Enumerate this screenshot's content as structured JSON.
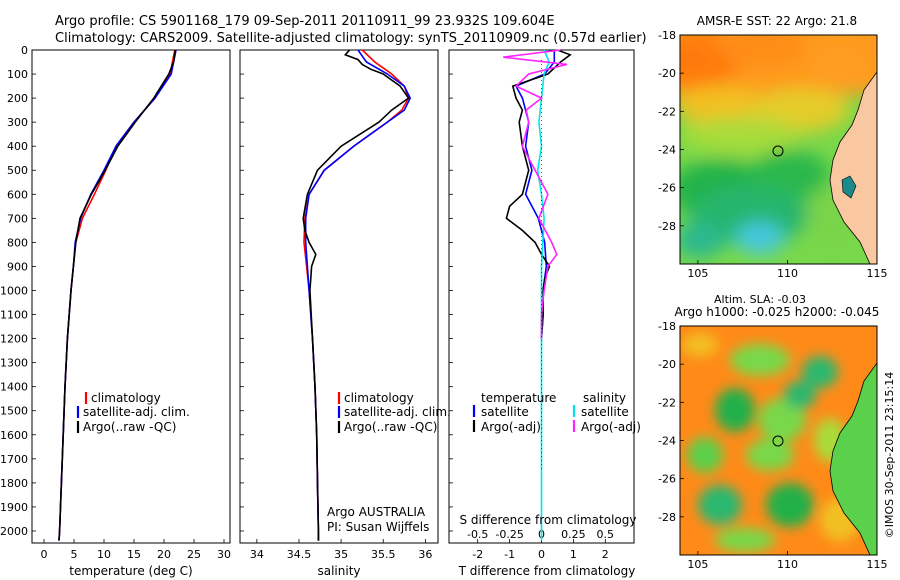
{
  "header": {
    "line1": "Argo profile: CS 5901168_179 09-Sep-2011 20110911_99 23.932S 109.604E",
    "line2": "Climatology: CARS2009. Satellite-adjusted climatology: synTS_20110909.nc (0.57d earlier)"
  },
  "colors": {
    "climatology": "#ff0000",
    "satellite": "#0000ff",
    "argo": "#000000",
    "sat_salinity": "#00e5e5",
    "argo_salinity": "#ff22ff"
  },
  "depth_axis": {
    "ticks": [
      "0",
      "100",
      "200",
      "300",
      "400",
      "500",
      "600",
      "700",
      "800",
      "900",
      "1000",
      "1100",
      "1200",
      "1300",
      "1400",
      "1500",
      "1600",
      "1700",
      "1800",
      "1900",
      "2000"
    ]
  },
  "temp_panel": {
    "xlabel": "temperature (deg C)",
    "ticks": [
      "0",
      "5",
      "10",
      "15",
      "20",
      "25",
      "30"
    ],
    "legend": [
      "climatology",
      "satellite-adj. clim.",
      "Argo(..raw -QC)"
    ]
  },
  "sal_panel": {
    "xlabel": "salinity",
    "ticks": [
      "34",
      "34.5",
      "35",
      "35.5",
      "36"
    ],
    "legend": [
      "climatology",
      "satellite-adj. clim.",
      "Argo(..raw -QC)"
    ],
    "note1": "Argo AUSTRALIA",
    "note2": "PI: Susan Wijffels"
  },
  "diff_panel": {
    "top_label": "S difference from climatology",
    "s_ticks": [
      "-0.5",
      "-0.25",
      "0",
      "0.25",
      "0.5"
    ],
    "t_ticks": [
      "-2",
      "-1",
      "0",
      "1",
      "2"
    ],
    "xlabel": "T difference from climatology",
    "legend_t_title": "temperature",
    "legend_t_items": [
      "satellite",
      "Argo(-adj)"
    ],
    "legend_s_title": "salinity",
    "legend_s_items": [
      "satellite",
      "Argo(-adj)"
    ]
  },
  "map_sst": {
    "title": "AMSR-E SST: 22  Argo: 21.8",
    "lat_ticks": [
      "-18",
      "-20",
      "-22",
      "-24",
      "-26",
      "-28"
    ],
    "lon_ticks": [
      "105",
      "110",
      "115"
    ]
  },
  "map_sla": {
    "title1": "Altim. SLA: -0.03",
    "title2": "Argo h1000: -0.025  h2000: -0.045",
    "lat_ticks": [
      "-18",
      "-20",
      "-22",
      "-24",
      "-26",
      "-28"
    ],
    "lon_ticks": [
      "105",
      "110",
      "115"
    ]
  },
  "credit": "©IMOS 30-Sep-2011 23:15:14",
  "chart_data": [
    {
      "type": "line",
      "xlabel": "temperature (deg C)",
      "ylabel": "",
      "xlim": [
        -2,
        31
      ],
      "ylim": [
        2050,
        0
      ],
      "series": [
        {
          "name": "climatology",
          "y": [
            0,
            100,
            200,
            300,
            400,
            500,
            600,
            700,
            800,
            900,
            1000,
            1200,
            1400,
            1600,
            1800,
            2000,
            2040
          ],
          "x": [
            21.8,
            21,
            18.5,
            15,
            12,
            10.3,
            8.4,
            6.4,
            5.3,
            4.9,
            4.5,
            3.9,
            3.5,
            3.2,
            2.9,
            2.6,
            2.5
          ]
        },
        {
          "name": "satellite-adj. clim.",
          "y": [
            0,
            100,
            200,
            300,
            400,
            500,
            600,
            700,
            800,
            900,
            1000,
            1200,
            1400,
            1600,
            1800,
            2000,
            2040
          ],
          "x": [
            22,
            21.2,
            18.5,
            15,
            12,
            10,
            7.8,
            6.1,
            5.2,
            4.9,
            4.5,
            3.9,
            3.5,
            3.2,
            2.9,
            2.6,
            2.5
          ]
        },
        {
          "name": "Argo(..raw -QC)",
          "y": [
            0,
            50,
            100,
            200,
            300,
            400,
            500,
            600,
            700,
            800,
            900,
            1000,
            1200,
            1400,
            1600,
            1800,
            2000,
            2040
          ],
          "x": [
            21.9,
            21.6,
            20.8,
            18.3,
            15.2,
            12.3,
            10.2,
            7.9,
            6,
            5.3,
            4.9,
            4.5,
            3.9,
            3.5,
            3.2,
            2.9,
            2.6,
            2.5
          ]
        }
      ]
    },
    {
      "type": "line",
      "xlabel": "salinity",
      "ylabel": "",
      "xlim": [
        33.8,
        36.15
      ],
      "ylim": [
        2050,
        0
      ],
      "series": [
        {
          "name": "climatology",
          "y": [
            0,
            50,
            100,
            150,
            200,
            250,
            300,
            400,
            500,
            600,
            700,
            800,
            900,
            1000,
            1200,
            1400,
            1600,
            1800,
            2000,
            2040
          ],
          "x": [
            35.25,
            35.4,
            35.6,
            35.75,
            35.8,
            35.72,
            35.55,
            35.15,
            34.8,
            34.62,
            34.57,
            34.56,
            34.59,
            34.62,
            34.66,
            34.69,
            34.71,
            34.72,
            34.73,
            34.73
          ]
        },
        {
          "name": "satellite-adj. clim.",
          "y": [
            0,
            50,
            100,
            150,
            200,
            250,
            300,
            400,
            500,
            600,
            700,
            800,
            900,
            1000,
            1200,
            1400,
            1600,
            1800,
            2000,
            2040
          ],
          "x": [
            35.2,
            35.3,
            35.55,
            35.75,
            35.82,
            35.75,
            35.55,
            35.15,
            34.8,
            34.62,
            34.58,
            34.58,
            34.6,
            34.62,
            34.66,
            34.69,
            34.71,
            34.72,
            34.73,
            34.73
          ]
        },
        {
          "name": "Argo(..raw -QC)",
          "y": [
            0,
            20,
            40,
            60,
            80,
            100,
            150,
            200,
            250,
            300,
            400,
            500,
            600,
            700,
            750,
            800,
            850,
            900,
            950,
            1000,
            1200,
            1400,
            1600,
            1800,
            2000,
            2040
          ],
          "x": [
            35.1,
            35.05,
            35.2,
            35.25,
            35.35,
            35.5,
            35.7,
            35.8,
            35.6,
            35.45,
            35.0,
            34.72,
            34.6,
            34.55,
            34.57,
            34.62,
            34.7,
            34.65,
            34.64,
            34.63,
            34.66,
            34.69,
            34.71,
            34.72,
            34.73,
            34.73
          ]
        }
      ]
    },
    {
      "type": "line",
      "xlabel": "T difference from climatology",
      "ylabel": "",
      "xlim": [
        -2.9,
        2.9
      ],
      "ylim": [
        2050,
        0
      ],
      "series": [
        {
          "name": "temperature satellite",
          "y": [
            0,
            50,
            100,
            150,
            200,
            300,
            400,
            500,
            600,
            700,
            800,
            900,
            1000,
            1100,
            1200
          ],
          "x": [
            0.4,
            0.4,
            0.1,
            -0.8,
            -0.6,
            -0.4,
            -0.5,
            -0.3,
            -0.5,
            -0.1,
            0.1,
            0.15,
            0.05,
            0.05,
            0
          ]
        },
        {
          "name": "temperature Argo(-adj)",
          "y": [
            0,
            20,
            50,
            100,
            150,
            200,
            250,
            300,
            400,
            500,
            600,
            650,
            700,
            750,
            800,
            850,
            900,
            950,
            1000,
            1100,
            1200
          ],
          "x": [
            0.5,
            0.9,
            0.6,
            0.2,
            -0.9,
            -0.8,
            -0.6,
            -0.7,
            -0.6,
            -0.4,
            -0.6,
            -1.0,
            -1.1,
            -0.6,
            -0.2,
            0,
            0.25,
            0.1,
            0.05,
            0.05,
            0
          ]
        },
        {
          "name": "salinity satellite",
          "y": [
            0,
            50,
            100,
            200,
            300,
            400,
            500,
            600,
            700,
            800,
            900,
            1000,
            1100,
            1200,
            1400,
            1600,
            1800,
            2000,
            2040
          ],
          "x": [
            0.02,
            0.06,
            0.02,
            0,
            -0.02,
            0,
            -0.03,
            0,
            0.02,
            0.01,
            0,
            0,
            0,
            0,
            0,
            0,
            0,
            0,
            0
          ]
        },
        {
          "name": "salinity Argo(-adj)",
          "y": [
            0,
            30,
            60,
            100,
            150,
            200,
            250,
            300,
            400,
            500,
            600,
            700,
            800,
            850,
            900,
            1000,
            1100,
            1200
          ],
          "x": [
            0.15,
            -0.3,
            0.2,
            -0.1,
            -0.2,
            0,
            -0.12,
            -0.1,
            -0.15,
            -0.05,
            0.05,
            -0.02,
            0.08,
            0.12,
            0.05,
            0.02,
            0,
            0
          ]
        }
      ]
    },
    {
      "type": "heatmap",
      "title": "AMSR-E SST: 22  Argo: 21.8",
      "xlim": [
        104,
        115
      ],
      "ylim": [
        -30,
        -18
      ],
      "argo_position": [
        109.604,
        -23.932
      ]
    },
    {
      "type": "heatmap",
      "title": "Altim. SLA: -0.03",
      "xlim": [
        104,
        115
      ],
      "ylim": [
        -30,
        -18
      ],
      "argo_position": [
        109.604,
        -23.932
      ]
    }
  ]
}
